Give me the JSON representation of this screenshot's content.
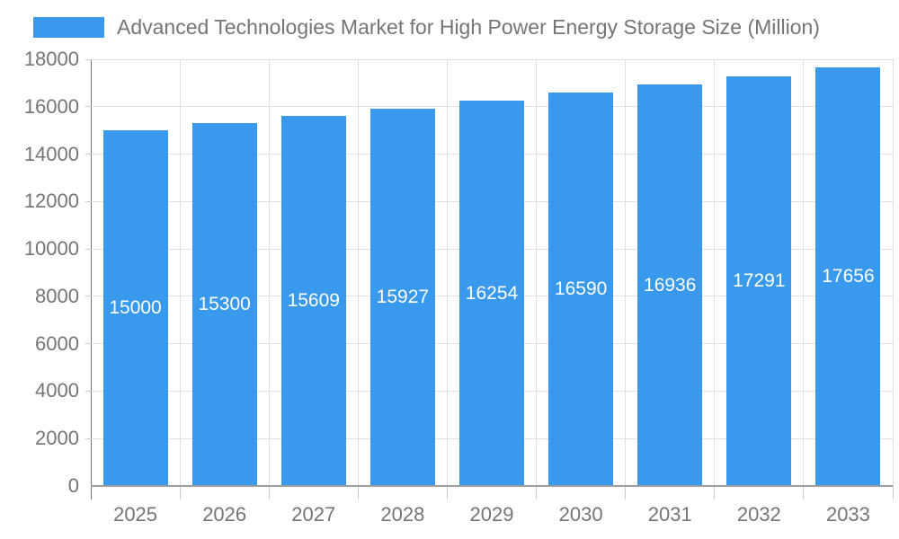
{
  "title": "Advanced Technologies Market for High Power Energy Storage Size (Million)",
  "legend": {
    "series_label": "Advanced Technologies Market for High Power Energy Storage Size (Million)",
    "swatch_color": "#3999EC"
  },
  "colors": {
    "bar": "#3999EC",
    "bar_label_text": "#FFFFFF",
    "title_text": "#757575",
    "axis_text": "#757575",
    "grid_line": "#E0E0E0",
    "axis_line": "#757575",
    "baseline": "#9E9E9E",
    "tick": "#CCCCCC",
    "background": "#FFFFFF"
  },
  "chart_data": {
    "type": "bar",
    "title": "Advanced Technologies Market for High Power Energy Storage Size (Million)",
    "categories": [
      "2025",
      "2026",
      "2027",
      "2028",
      "2029",
      "2030",
      "2031",
      "2032",
      "2033"
    ],
    "values": [
      15000,
      15300,
      15609,
      15927,
      16254,
      16590,
      16936,
      17291,
      17656
    ],
    "bar_value_labels": [
      "15000",
      "15300",
      "15609",
      "15927",
      "16254",
      "16590",
      "16936",
      "17291",
      "17656"
    ],
    "y_tick_labels": [
      "0",
      "2000",
      "4000",
      "6000",
      "8000",
      "10000",
      "12000",
      "14000",
      "16000",
      "18000"
    ],
    "xlabel": "",
    "ylabel": "",
    "ylim": [
      0,
      18000
    ],
    "ytick_interval": 2000,
    "grid": "horizontal-and-vertical",
    "legend_position": "top-left",
    "bar_labels_inside": true
  }
}
